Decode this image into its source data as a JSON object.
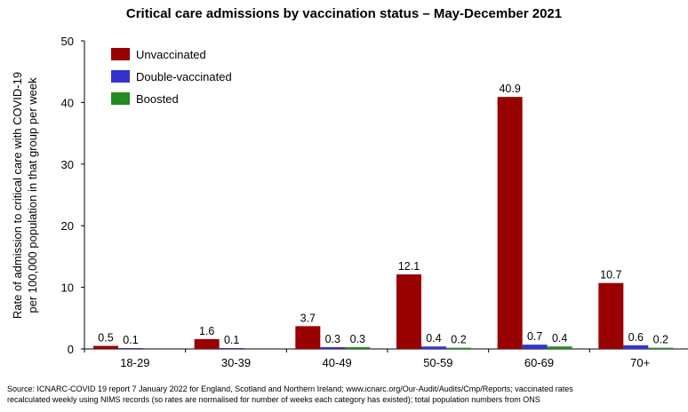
{
  "chart_data": {
    "type": "bar",
    "title": "Critical care admissions by vaccination status – May-December 2021",
    "ylabel_line1": "Rate of admission to critical care with COVID-19",
    "ylabel_line2": "per 100,000 population in that group per week",
    "xlabel": "",
    "ylim": [
      0,
      50
    ],
    "yticks": [
      0,
      10,
      20,
      30,
      40,
      50
    ],
    "categories": [
      "18-29",
      "30-39",
      "40-49",
      "50-59",
      "60-69",
      "70+"
    ],
    "series": [
      {
        "name": "Unvaccinated",
        "color": "#990000",
        "values": [
          0.5,
          1.6,
          3.7,
          12.1,
          40.9,
          10.7
        ],
        "labels": [
          "0.5",
          "1.6",
          "3.7",
          "12.1",
          "40.9",
          "10.7"
        ]
      },
      {
        "name": "Double-vaccinated",
        "color": "#3333cc",
        "values": [
          0.1,
          0.1,
          0.3,
          0.4,
          0.7,
          0.6
        ],
        "labels": [
          "0.1",
          "0.1",
          "0.3",
          "0.4",
          "0.7",
          "0.6"
        ]
      },
      {
        "name": "Boosted",
        "color": "#228b22",
        "values": [
          null,
          null,
          0.3,
          0.2,
          0.4,
          0.2
        ],
        "labels": [
          "",
          "",
          "0.3",
          "0.2",
          "0.4",
          "0.2"
        ]
      }
    ],
    "legend_position": "top-left",
    "grid": false
  },
  "source_line1": "Source: ICNARC-COVID 19 report 7 January 2022 for England, Scotland and Northern Ireland; www.icnarc.org/Our-Audit/Audits/Cmp/Reports; vaccinated rates",
  "source_line2": "recalculated weekly using NIMS records (so rates are normalised for number of weeks each category has existed); total population numbers from ONS"
}
